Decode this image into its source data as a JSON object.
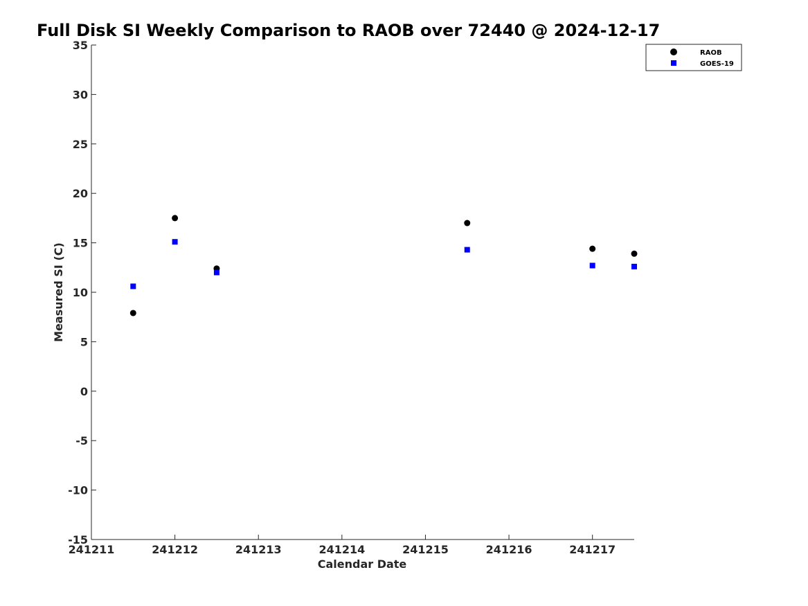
{
  "chart_data": {
    "type": "scatter",
    "title": "Full Disk SI Weekly Comparison to RAOB over 72440 @ 2024-12-17",
    "xlabel": "Calendar Date",
    "ylabel": "Measured SI (C)",
    "xlim": [
      "2024-12-11",
      "2024-12-17 12:00"
    ],
    "ylim": [
      -15,
      35
    ],
    "x_ticks": [
      "241211",
      "241212",
      "241213",
      "241214",
      "241215",
      "241216",
      "241217"
    ],
    "y_ticks": [
      -15,
      -10,
      -5,
      0,
      5,
      10,
      15,
      20,
      25,
      30,
      35
    ],
    "grid": false,
    "legend_position": "top-right",
    "series": [
      {
        "name": "RAOB",
        "marker": "circle",
        "color": "#000000",
        "points": [
          {
            "x": "2024-12-11 12:00",
            "y": 7.9
          },
          {
            "x": "2024-12-12 00:00",
            "y": 17.5
          },
          {
            "x": "2024-12-12 12:00",
            "y": 12.4
          },
          {
            "x": "2024-12-15 12:00",
            "y": 17.0
          },
          {
            "x": "2024-12-17 00:00",
            "y": 14.4
          },
          {
            "x": "2024-12-17 12:00",
            "y": 13.9
          }
        ]
      },
      {
        "name": "GOES-19",
        "marker": "square",
        "color": "#0000ff",
        "points": [
          {
            "x": "2024-12-11 12:00",
            "y": 10.6
          },
          {
            "x": "2024-12-12 00:00",
            "y": 15.1
          },
          {
            "x": "2024-12-12 12:00",
            "y": 12.0
          },
          {
            "x": "2024-12-15 12:00",
            "y": 14.3
          },
          {
            "x": "2024-12-17 00:00",
            "y": 12.7
          },
          {
            "x": "2024-12-17 12:00",
            "y": 12.6
          }
        ]
      }
    ]
  }
}
